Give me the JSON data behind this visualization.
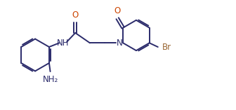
{
  "bg_color": "#ffffff",
  "bond_color": "#2b2b6b",
  "atom_color_N": "#2b2b6b",
  "atom_color_O": "#cc4400",
  "atom_color_Br": "#996633",
  "line_width": 1.4,
  "font_size": 8.5,
  "figsize": [
    3.36,
    1.57
  ],
  "dpi": 100,
  "xlim": [
    0,
    10.5
  ],
  "ylim": [
    0.2,
    4.2
  ]
}
